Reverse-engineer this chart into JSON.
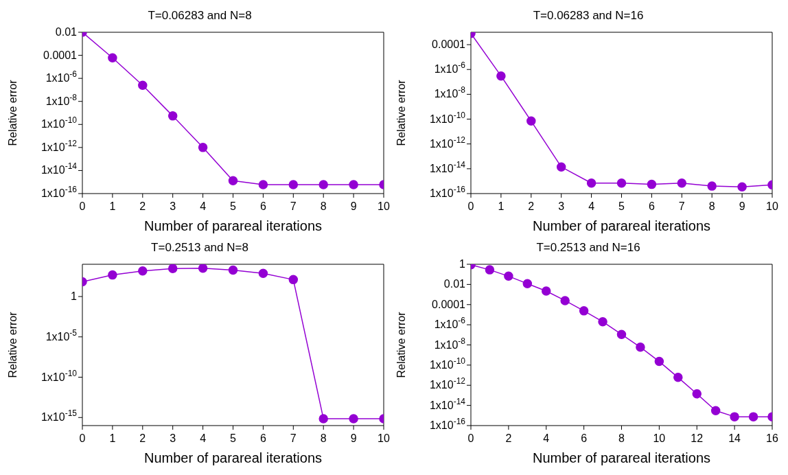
{
  "chart_data": [
    {
      "type": "line",
      "title": "T=0.06283 and N=8",
      "xlabel": "Number of parareal iterations",
      "ylabel": "Relative error",
      "log": "y",
      "grid": false,
      "marker": "circle",
      "line_style": "solid",
      "x": [
        0,
        1,
        2,
        3,
        4,
        5,
        6,
        7,
        8,
        9,
        10
      ],
      "series": [
        {
          "color": "#9400d3",
          "values": [
            0.01,
            6e-05,
            2.5e-07,
            5.5e-10,
            1e-12,
            1.3e-15,
            6e-16,
            6e-16,
            6e-16,
            6e-16,
            6e-16
          ]
        }
      ],
      "xlim": [
        0,
        10
      ],
      "xticks": [
        0,
        1,
        2,
        3,
        4,
        5,
        6,
        7,
        8,
        9,
        10
      ],
      "ylim": [
        1e-16,
        0.01
      ],
      "yticks": [
        0.01,
        0.0001,
        {
          "value": 1e-06,
          "label": "1x10$^{-6}$"
        },
        {
          "value": 1e-08,
          "label": "1x10$^{-8}$"
        },
        {
          "value": 1e-10,
          "label": "1x10$^{-10}$"
        },
        {
          "value": 1e-12,
          "label": "1x10$^{-12}$"
        },
        {
          "value": 1e-14,
          "label": "1x10$^{-14}$"
        },
        {
          "value": 1e-16,
          "label": "1x10$^{-16}$"
        }
      ]
    },
    {
      "type": "line",
      "title": "T=0.06283 and N=16",
      "xlabel": "Number of parareal iterations",
      "ylabel": "Relative error",
      "log": "y",
      "grid": false,
      "marker": "circle",
      "line_style": "solid",
      "x": [
        0,
        1,
        2,
        3,
        4,
        5,
        6,
        7,
        8,
        9,
        10
      ],
      "series": [
        {
          "color": "#9400d3",
          "values": [
            0.0008,
            3e-07,
            7e-11,
            1.4e-14,
            7e-16,
            7e-16,
            5.5e-16,
            7e-16,
            4e-16,
            3.5e-16,
            5e-16
          ]
        }
      ],
      "xlim": [
        0,
        10
      ],
      "xticks": [
        0,
        1,
        2,
        3,
        4,
        5,
        6,
        7,
        8,
        9,
        10
      ],
      "ylim": [
        1e-16,
        0.001
      ],
      "yticks": [
        0.0001,
        {
          "value": 1e-06,
          "label": "1x10$^{-6}$"
        },
        {
          "value": 1e-08,
          "label": "1x10$^{-8}$"
        },
        {
          "value": 1e-10,
          "label": "1x10$^{-10}$"
        },
        {
          "value": 1e-12,
          "label": "1x10$^{-12}$"
        },
        {
          "value": 1e-14,
          "label": "1x10$^{-14}$"
        },
        {
          "value": 1e-16,
          "label": "1x10$^{-16}$"
        }
      ]
    },
    {
      "type": "line",
      "title": "T=0.2513 and N=8",
      "xlabel": "Number of parareal iterations",
      "ylabel": "Relative error",
      "log": "y",
      "grid": false,
      "marker": "circle",
      "line_style": "solid",
      "x": [
        0,
        1,
        2,
        3,
        4,
        5,
        6,
        7,
        8,
        9,
        10
      ],
      "series": [
        {
          "color": "#9400d3",
          "values": [
            68,
            470,
            1500,
            3000,
            3200,
            1900,
            740,
            125,
            7e-16,
            7e-16,
            7e-16
          ]
        }
      ],
      "xlim": [
        0,
        10
      ],
      "xticks": [
        0,
        1,
        2,
        3,
        4,
        5,
        6,
        7,
        8,
        9,
        10
      ],
      "ylim": [
        1e-16,
        10000
      ],
      "yticks": [
        1,
        {
          "value": 1e-05,
          "label": "1x10$^{-5}$"
        },
        {
          "value": 1e-10,
          "label": "1x10$^{-10}$"
        },
        {
          "value": 1e-15,
          "label": "1x10$^{-15}$"
        }
      ]
    },
    {
      "type": "line",
      "title": "T=0.2513 and N=16",
      "xlabel": "Number of parareal iterations",
      "ylabel": "Relative error",
      "log": "y",
      "grid": false,
      "marker": "circle",
      "line_style": "solid",
      "x": [
        0,
        1,
        2,
        3,
        4,
        5,
        6,
        7,
        8,
        9,
        10,
        11,
        12,
        13,
        14,
        15,
        16
      ],
      "series": [
        {
          "color": "#9400d3",
          "values": [
            0.9,
            0.28,
            0.066,
            0.012,
            0.0022,
            0.00025,
            2.4e-05,
            2e-06,
            1.1e-07,
            6e-09,
            2.3e-10,
            6e-12,
            1.4e-13,
            3e-15,
            7.5e-16,
            7.5e-16,
            7.5e-16
          ]
        }
      ],
      "xlim": [
        0,
        16
      ],
      "xticks": [
        0,
        2,
        4,
        6,
        8,
        10,
        12,
        14,
        16
      ],
      "ylim": [
        1e-16,
        1
      ],
      "yticks": [
        1,
        0.01,
        0.0001,
        {
          "value": 1e-06,
          "label": "1x10$^{-6}$"
        },
        {
          "value": 1e-08,
          "label": "1x10$^{-8}$"
        },
        {
          "value": 1e-10,
          "label": "1x10$^{-10}$"
        },
        {
          "value": 1e-12,
          "label": "1x10$^{-12}$"
        },
        {
          "value": 1e-14,
          "label": "1x10$^{-14}$"
        },
        {
          "value": 1e-16,
          "label": "1x10$^{-16}$"
        }
      ]
    }
  ]
}
